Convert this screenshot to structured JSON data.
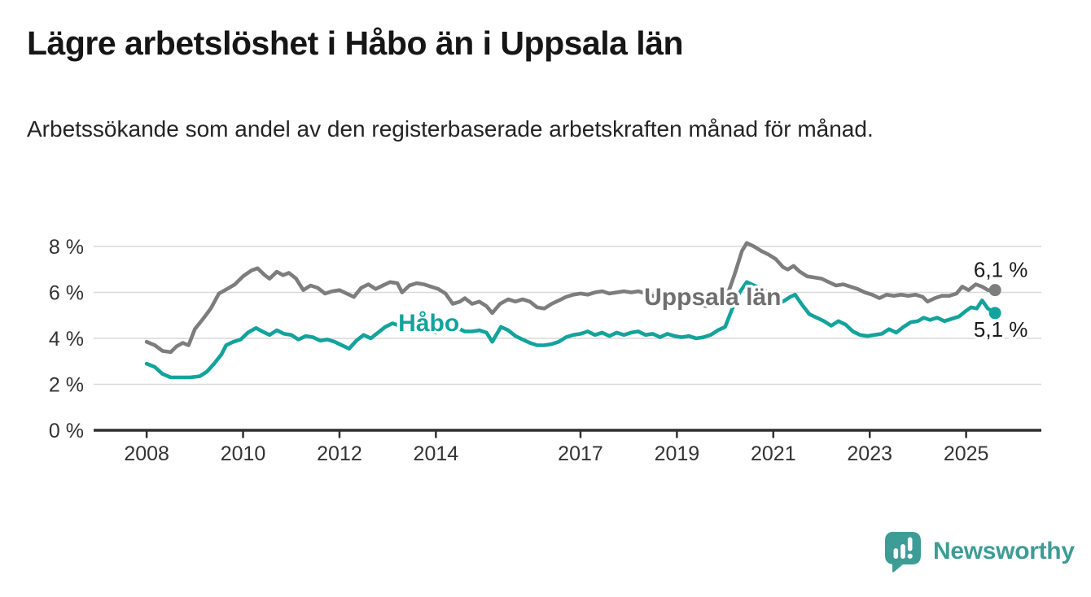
{
  "header": {
    "title": "Lägre arbetslöshet i Håbo än i Uppsala län",
    "subtitle": "Arbetssökande som andel av den registerbaserade arbetskraften månad för månad."
  },
  "branding": {
    "name": "Newsworthy",
    "color": "#3e9c96",
    "icon": "bar-chart-speech-bubble"
  },
  "colors": {
    "grid": "#d9d9d9",
    "axis": "#2f2f2f",
    "axis_text": "#333333",
    "end_label": "#1a1a1a",
    "background": "#ffffff",
    "habo": "#13a39c",
    "uppsala": "#7d7d7d"
  },
  "chart_data": {
    "type": "line",
    "title": "Lägre arbetslöshet i Håbo än i Uppsala län",
    "xlabel": "",
    "ylabel": "Arbetssökande som andel av den registerbaserade arbetskraften",
    "grid": "horizontal",
    "legend": "inline-labels",
    "x_axis": {
      "range": [
        2006.9,
        2026.56
      ],
      "ticks": [
        2008,
        2010,
        2012,
        2014,
        2017,
        2019,
        2021,
        2023,
        2025
      ]
    },
    "y_axis": {
      "range": [
        0,
        8.6
      ],
      "ticks": [
        0,
        2,
        4,
        6,
        8
      ],
      "labels": [
        "0 %",
        "2 %",
        "4 %",
        "6 %",
        "8 %"
      ]
    },
    "series": [
      {
        "id": "uppsala",
        "name": "Uppsala län",
        "color": "#7d7d7d",
        "label_color": "#6f6f6f",
        "end_label": "6,1 %",
        "end_value": 6.1,
        "end_label_dy": -16,
        "inline_label": {
          "year": 2018.32,
          "pct": 5.8
        },
        "points": [
          [
            2008.0,
            3.85
          ],
          [
            2008.17,
            3.7
          ],
          [
            2008.33,
            3.45
          ],
          [
            2008.5,
            3.4
          ],
          [
            2008.62,
            3.65
          ],
          [
            2008.75,
            3.8
          ],
          [
            2008.87,
            3.7
          ],
          [
            2009.0,
            4.4
          ],
          [
            2009.17,
            4.85
          ],
          [
            2009.33,
            5.3
          ],
          [
            2009.5,
            5.95
          ],
          [
            2009.67,
            6.15
          ],
          [
            2009.83,
            6.35
          ],
          [
            2010.0,
            6.7
          ],
          [
            2010.17,
            6.95
          ],
          [
            2010.3,
            7.05
          ],
          [
            2010.45,
            6.75
          ],
          [
            2010.55,
            6.6
          ],
          [
            2010.7,
            6.9
          ],
          [
            2010.83,
            6.75
          ],
          [
            2010.95,
            6.85
          ],
          [
            2011.1,
            6.6
          ],
          [
            2011.25,
            6.1
          ],
          [
            2011.4,
            6.3
          ],
          [
            2011.55,
            6.2
          ],
          [
            2011.7,
            5.95
          ],
          [
            2011.85,
            6.05
          ],
          [
            2012.0,
            6.1
          ],
          [
            2012.15,
            5.95
          ],
          [
            2012.3,
            5.8
          ],
          [
            2012.45,
            6.2
          ],
          [
            2012.6,
            6.35
          ],
          [
            2012.75,
            6.15
          ],
          [
            2012.9,
            6.3
          ],
          [
            2013.05,
            6.45
          ],
          [
            2013.2,
            6.4
          ],
          [
            2013.3,
            6.0
          ],
          [
            2013.45,
            6.3
          ],
          [
            2013.6,
            6.4
          ],
          [
            2013.75,
            6.35
          ],
          [
            2013.9,
            6.25
          ],
          [
            2014.05,
            6.15
          ],
          [
            2014.2,
            5.95
          ],
          [
            2014.35,
            5.5
          ],
          [
            2014.5,
            5.6
          ],
          [
            2014.6,
            5.75
          ],
          [
            2014.75,
            5.5
          ],
          [
            2014.9,
            5.6
          ],
          [
            2015.05,
            5.4
          ],
          [
            2015.17,
            5.1
          ],
          [
            2015.33,
            5.5
          ],
          [
            2015.5,
            5.7
          ],
          [
            2015.65,
            5.6
          ],
          [
            2015.8,
            5.7
          ],
          [
            2015.95,
            5.6
          ],
          [
            2016.1,
            5.35
          ],
          [
            2016.25,
            5.3
          ],
          [
            2016.4,
            5.5
          ],
          [
            2016.55,
            5.65
          ],
          [
            2016.7,
            5.8
          ],
          [
            2016.85,
            5.9
          ],
          [
            2017.0,
            5.95
          ],
          [
            2017.15,
            5.9
          ],
          [
            2017.3,
            6.0
          ],
          [
            2017.45,
            6.05
          ],
          [
            2017.6,
            5.95
          ],
          [
            2017.75,
            6.0
          ],
          [
            2017.9,
            6.05
          ],
          [
            2018.05,
            6.0
          ],
          [
            2018.2,
            6.05
          ],
          [
            2018.35,
            5.95
          ],
          [
            2018.5,
            5.85
          ],
          [
            2018.65,
            5.75
          ],
          [
            2018.8,
            5.7
          ],
          [
            2019.0,
            5.65
          ],
          [
            2019.2,
            5.55
          ],
          [
            2019.4,
            5.5
          ],
          [
            2019.6,
            5.4
          ],
          [
            2019.75,
            5.45
          ],
          [
            2019.9,
            5.55
          ],
          [
            2020.05,
            5.9
          ],
          [
            2020.2,
            6.8
          ],
          [
            2020.35,
            7.8
          ],
          [
            2020.45,
            8.15
          ],
          [
            2020.6,
            8.0
          ],
          [
            2020.75,
            7.8
          ],
          [
            2020.9,
            7.65
          ],
          [
            2021.05,
            7.45
          ],
          [
            2021.2,
            7.1
          ],
          [
            2021.3,
            7.0
          ],
          [
            2021.42,
            7.15
          ],
          [
            2021.55,
            6.9
          ],
          [
            2021.7,
            6.7
          ],
          [
            2021.85,
            6.65
          ],
          [
            2022.0,
            6.6
          ],
          [
            2022.15,
            6.45
          ],
          [
            2022.3,
            6.3
          ],
          [
            2022.45,
            6.35
          ],
          [
            2022.6,
            6.25
          ],
          [
            2022.75,
            6.15
          ],
          [
            2022.9,
            6.0
          ],
          [
            2023.05,
            5.9
          ],
          [
            2023.2,
            5.75
          ],
          [
            2023.35,
            5.9
          ],
          [
            2023.5,
            5.85
          ],
          [
            2023.65,
            5.9
          ],
          [
            2023.8,
            5.85
          ],
          [
            2023.95,
            5.9
          ],
          [
            2024.1,
            5.8
          ],
          [
            2024.2,
            5.6
          ],
          [
            2024.35,
            5.75
          ],
          [
            2024.5,
            5.85
          ],
          [
            2024.65,
            5.85
          ],
          [
            2024.8,
            5.95
          ],
          [
            2024.92,
            6.25
          ],
          [
            2025.05,
            6.1
          ],
          [
            2025.2,
            6.35
          ],
          [
            2025.33,
            6.25
          ],
          [
            2025.45,
            6.1
          ],
          [
            2025.6,
            6.1
          ]
        ]
      },
      {
        "id": "habo",
        "name": "Håbo",
        "color": "#13a39c",
        "label_color": "#13a39c",
        "end_label": "5,1 %",
        "end_value": 5.1,
        "end_label_dy": 29,
        "inline_label": {
          "year": 2013.22,
          "pct": 4.68
        },
        "points": [
          [
            2008.0,
            2.9
          ],
          [
            2008.17,
            2.75
          ],
          [
            2008.33,
            2.45
          ],
          [
            2008.5,
            2.3
          ],
          [
            2008.7,
            2.3
          ],
          [
            2008.9,
            2.3
          ],
          [
            2009.1,
            2.35
          ],
          [
            2009.25,
            2.55
          ],
          [
            2009.4,
            2.9
          ],
          [
            2009.55,
            3.3
          ],
          [
            2009.65,
            3.7
          ],
          [
            2009.8,
            3.85
          ],
          [
            2009.95,
            3.95
          ],
          [
            2010.1,
            4.25
          ],
          [
            2010.27,
            4.45
          ],
          [
            2010.4,
            4.3
          ],
          [
            2010.55,
            4.15
          ],
          [
            2010.7,
            4.35
          ],
          [
            2010.85,
            4.2
          ],
          [
            2011.0,
            4.15
          ],
          [
            2011.15,
            3.95
          ],
          [
            2011.3,
            4.1
          ],
          [
            2011.45,
            4.05
          ],
          [
            2011.6,
            3.9
          ],
          [
            2011.75,
            3.95
          ],
          [
            2011.9,
            3.85
          ],
          [
            2012.05,
            3.7
          ],
          [
            2012.2,
            3.55
          ],
          [
            2012.35,
            3.9
          ],
          [
            2012.5,
            4.15
          ],
          [
            2012.65,
            4.0
          ],
          [
            2012.8,
            4.25
          ],
          [
            2012.95,
            4.5
          ],
          [
            2013.1,
            4.65
          ],
          [
            2013.25,
            4.55
          ],
          [
            2013.4,
            4.65
          ],
          [
            2013.55,
            4.5
          ],
          [
            2013.7,
            4.4
          ],
          [
            2013.85,
            4.3
          ],
          [
            2014.0,
            4.25
          ],
          [
            2014.15,
            4.45
          ],
          [
            2014.3,
            4.35
          ],
          [
            2014.45,
            4.45
          ],
          [
            2014.6,
            4.3
          ],
          [
            2014.75,
            4.3
          ],
          [
            2014.9,
            4.35
          ],
          [
            2015.05,
            4.25
          ],
          [
            2015.17,
            3.85
          ],
          [
            2015.35,
            4.5
          ],
          [
            2015.5,
            4.35
          ],
          [
            2015.65,
            4.1
          ],
          [
            2015.8,
            3.95
          ],
          [
            2015.95,
            3.8
          ],
          [
            2016.1,
            3.7
          ],
          [
            2016.25,
            3.7
          ],
          [
            2016.4,
            3.75
          ],
          [
            2016.55,
            3.85
          ],
          [
            2016.7,
            4.05
          ],
          [
            2016.85,
            4.15
          ],
          [
            2017.0,
            4.2
          ],
          [
            2017.15,
            4.3
          ],
          [
            2017.3,
            4.15
          ],
          [
            2017.45,
            4.25
          ],
          [
            2017.6,
            4.1
          ],
          [
            2017.75,
            4.25
          ],
          [
            2017.9,
            4.15
          ],
          [
            2018.05,
            4.25
          ],
          [
            2018.2,
            4.3
          ],
          [
            2018.35,
            4.15
          ],
          [
            2018.5,
            4.2
          ],
          [
            2018.65,
            4.05
          ],
          [
            2018.8,
            4.2
          ],
          [
            2018.95,
            4.1
          ],
          [
            2019.1,
            4.05
          ],
          [
            2019.25,
            4.1
          ],
          [
            2019.4,
            4.0
          ],
          [
            2019.55,
            4.05
          ],
          [
            2019.7,
            4.15
          ],
          [
            2019.85,
            4.35
          ],
          [
            2020.0,
            4.5
          ],
          [
            2020.15,
            5.3
          ],
          [
            2020.3,
            6.0
          ],
          [
            2020.45,
            6.45
          ],
          [
            2020.6,
            6.3
          ],
          [
            2020.75,
            6.15
          ],
          [
            2020.9,
            6.0
          ],
          [
            2021.05,
            5.8
          ],
          [
            2021.2,
            5.6
          ],
          [
            2021.35,
            5.8
          ],
          [
            2021.45,
            5.9
          ],
          [
            2021.6,
            5.45
          ],
          [
            2021.75,
            5.05
          ],
          [
            2021.9,
            4.9
          ],
          [
            2022.05,
            4.75
          ],
          [
            2022.2,
            4.55
          ],
          [
            2022.35,
            4.75
          ],
          [
            2022.5,
            4.6
          ],
          [
            2022.65,
            4.3
          ],
          [
            2022.8,
            4.15
          ],
          [
            2022.95,
            4.1
          ],
          [
            2023.1,
            4.15
          ],
          [
            2023.25,
            4.2
          ],
          [
            2023.4,
            4.4
          ],
          [
            2023.55,
            4.25
          ],
          [
            2023.7,
            4.5
          ],
          [
            2023.85,
            4.7
          ],
          [
            2024.0,
            4.75
          ],
          [
            2024.12,
            4.9
          ],
          [
            2024.25,
            4.8
          ],
          [
            2024.4,
            4.9
          ],
          [
            2024.55,
            4.75
          ],
          [
            2024.7,
            4.85
          ],
          [
            2024.85,
            4.95
          ],
          [
            2025.0,
            5.2
          ],
          [
            2025.1,
            5.35
          ],
          [
            2025.22,
            5.3
          ],
          [
            2025.33,
            5.65
          ],
          [
            2025.45,
            5.3
          ],
          [
            2025.6,
            5.1
          ]
        ]
      }
    ]
  }
}
